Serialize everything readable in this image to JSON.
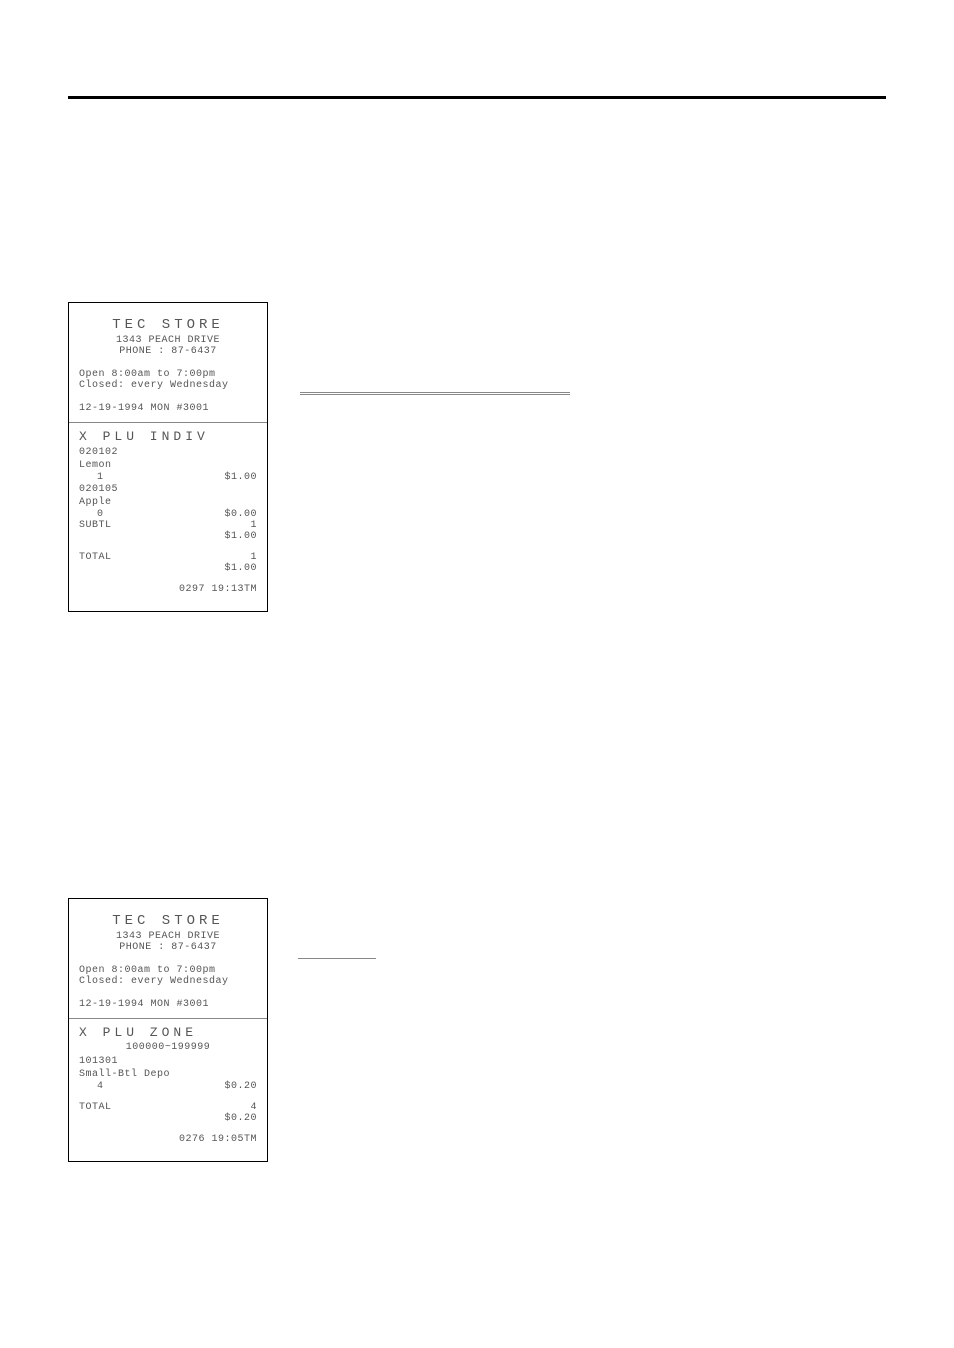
{
  "store": {
    "name": "TEC STORE",
    "address": "1343 PEACH DRIVE",
    "phone_label": "PHONE : 87-6437",
    "hours_open": "Open  8:00am to 7:00pm",
    "hours_closed": "Closed: every Wednesday"
  },
  "receipt1": {
    "date_line": "12-19-1994  MON #3001",
    "title": "X  PLU  INDIV",
    "item1_code": "020102",
    "item1_name": "Lemon",
    "item1_qty": "1",
    "item1_amount": "$1.00",
    "item2_code": "020105",
    "item2_name": "Apple",
    "item2_qty": "0",
    "item2_amount": "$0.00",
    "subtl_label": "SUBTL",
    "subtl_qty": "1",
    "subtl_amount": "$1.00",
    "total_label": "TOTAL",
    "total_qty": "1",
    "total_amount": "$1.00",
    "footer": "0297 19:13TM"
  },
  "receipt2": {
    "date_line": "12-19-1994  MON #3001",
    "title": "X  PLU  ZONE",
    "range": "100000~199999",
    "item1_code": "101301",
    "item1_name": "Small-Btl Depo",
    "item1_qty": "4",
    "item1_amount": "$0.20",
    "total_label": "TOTAL",
    "total_qty": "4",
    "total_amount": "$0.20",
    "footer": "0276 19:05TM"
  }
}
